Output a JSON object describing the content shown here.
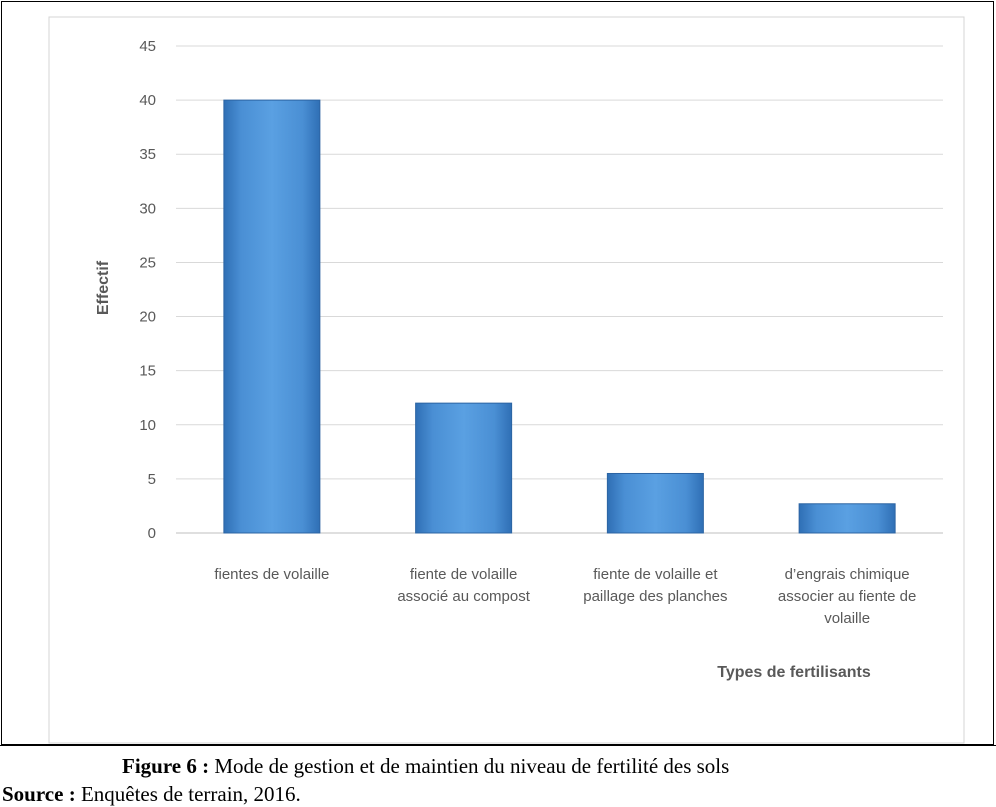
{
  "chart_data": {
    "type": "bar",
    "categories": [
      [
        "fientes de volaille"
      ],
      [
        "fiente de volaille",
        "associé au compost"
      ],
      [
        "fiente de volaille et",
        "paillage des planches"
      ],
      [
        "d’engrais chimique",
        "associer au fiente de",
        "volaille"
      ]
    ],
    "values": [
      40,
      12,
      5.5,
      2.7
    ],
    "ylabel": "Effectif",
    "xlabel": "Types de fertilisants",
    "yticks": [
      "0",
      "5",
      "10",
      "15",
      "20",
      "25",
      "30",
      "35",
      "40",
      "45"
    ],
    "ylim": [
      0,
      45
    ],
    "grid": true,
    "bar_color": "#4a8fd4"
  },
  "caption": {
    "figure_label": "Figure 6 :",
    "figure_text": " Mode de gestion et de maintien du niveau de fertilité des sols",
    "source_label": "Source :",
    "source_text": " Enquêtes de terrain, 2016."
  }
}
